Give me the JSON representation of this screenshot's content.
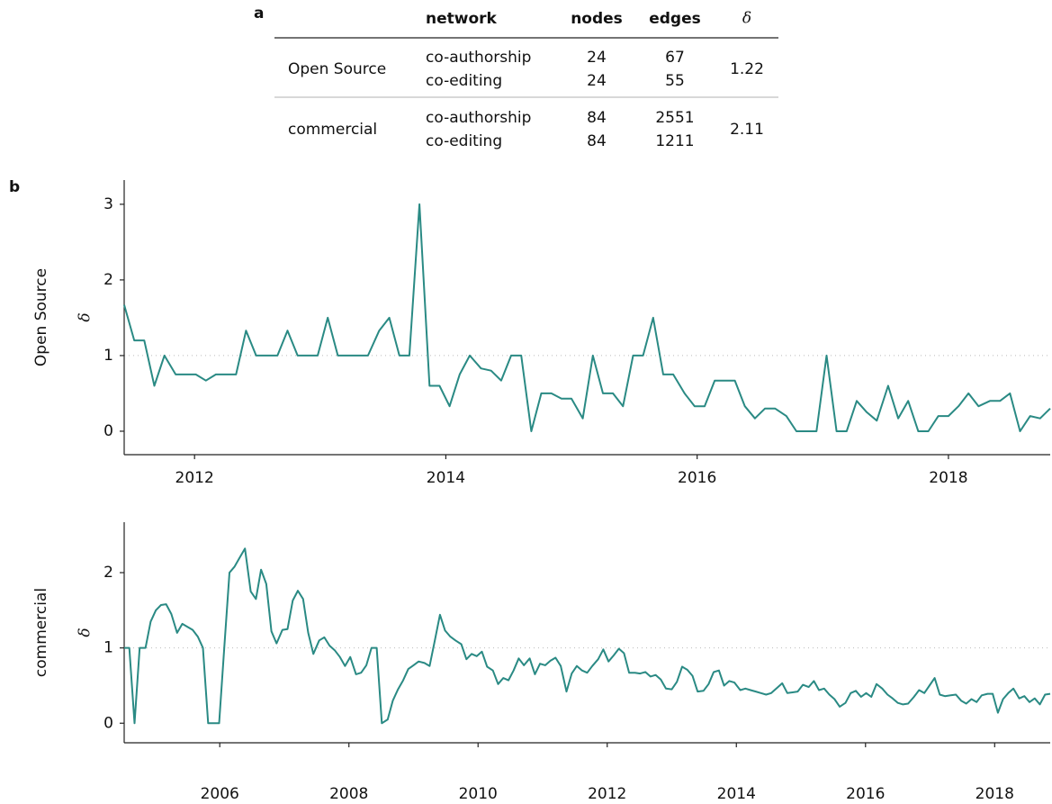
{
  "panel_labels": [
    "a",
    "b"
  ],
  "table": {
    "header": [
      "network",
      "nodes",
      "edges",
      "δ"
    ],
    "groups": [
      {
        "name": "Open Source",
        "rows": [
          [
            "co-authorship",
            24,
            67
          ],
          [
            "co-editing",
            24,
            55
          ]
        ],
        "delta": 1.22
      },
      {
        "name": "commercial",
        "rows": [
          [
            "co-authorship",
            84,
            2551
          ],
          [
            "co-editing",
            84,
            1211
          ]
        ],
        "delta": 2.11
      }
    ]
  },
  "chart_data": [
    {
      "type": "line",
      "label": "Open Source",
      "ylabel": "δ",
      "color": "#2a8a84",
      "reference_line": 1,
      "xlim": [
        2011.44,
        2018.81
      ],
      "xticks": [
        2012,
        2014,
        2016,
        2018
      ],
      "ylim": [
        -0.31,
        3.32
      ],
      "yticks": [
        0,
        1,
        2,
        3
      ],
      "x": [
        2011.44,
        2011.52,
        2011.6,
        2011.68,
        2011.76,
        2011.85,
        2011.93,
        2012.01,
        2012.09,
        2012.17,
        2012.25,
        2012.33,
        2012.41,
        2012.49,
        2012.57,
        2012.66,
        2012.74,
        2012.82,
        2012.9,
        2012.98,
        2013.06,
        2013.14,
        2013.22,
        2013.3,
        2013.38,
        2013.47,
        2013.55,
        2013.63,
        2013.71,
        2013.79,
        2013.87,
        2013.95,
        2014.03,
        2014.11,
        2014.19,
        2014.28,
        2014.36,
        2014.44,
        2014.52,
        2014.6,
        2014.68,
        2014.76,
        2014.84,
        2014.92,
        2015.0,
        2015.09,
        2015.17,
        2015.25,
        2015.33,
        2015.41,
        2015.49,
        2015.57,
        2015.65,
        2015.73,
        2015.81,
        2015.9,
        2015.98,
        2016.06,
        2016.14,
        2016.22,
        2016.3,
        2016.38,
        2016.46,
        2016.54,
        2016.62,
        2016.71,
        2016.79,
        2016.87,
        2016.95,
        2017.03,
        2017.11,
        2017.19,
        2017.27,
        2017.35,
        2017.43,
        2017.52,
        2017.6,
        2017.68,
        2017.76,
        2017.84,
        2017.92,
        2018.0,
        2018.08,
        2018.16,
        2018.24,
        2018.33,
        2018.41,
        2018.49,
        2018.57,
        2018.65,
        2018.73,
        2018.81
      ],
      "values": [
        1.67,
        1.2,
        1.2,
        0.6,
        1.0,
        0.75,
        0.75,
        0.75,
        0.67,
        0.75,
        0.75,
        0.75,
        1.33,
        1.0,
        1.0,
        1.0,
        1.33,
        1.0,
        1.0,
        1.0,
        1.5,
        1.0,
        1.0,
        1.0,
        1.0,
        1.33,
        1.5,
        1.0,
        1.0,
        3.0,
        0.6,
        0.6,
        0.33,
        0.75,
        1.0,
        0.83,
        0.8,
        0.67,
        1.0,
        1.0,
        0.0,
        0.5,
        0.5,
        0.43,
        0.43,
        0.17,
        1.0,
        0.5,
        0.5,
        0.33,
        1.0,
        1.0,
        1.5,
        0.75,
        0.75,
        0.5,
        0.33,
        0.33,
        0.67,
        0.67,
        0.67,
        0.33,
        0.17,
        0.3,
        0.3,
        0.2,
        0.0,
        0.0,
        0.0,
        1.0,
        0.0,
        0.0,
        0.4,
        0.25,
        0.14,
        0.6,
        0.17,
        0.4,
        0.0,
        0.0,
        0.2,
        0.2,
        0.33,
        0.5,
        0.33,
        0.4,
        0.4,
        0.5,
        0.0,
        0.2,
        0.17,
        0.3
      ]
    },
    {
      "type": "line",
      "label": "commercial",
      "ylabel": "δ",
      "color": "#2a8a84",
      "reference_line": 1,
      "xlim": [
        2004.52,
        2018.86
      ],
      "xticks": [
        2006,
        2008,
        2010,
        2012,
        2014,
        2016,
        2018
      ],
      "ylim": [
        -0.26,
        2.67
      ],
      "yticks": [
        0,
        1,
        2
      ],
      "x": [
        2004.52,
        2004.6,
        2004.68,
        2004.76,
        2004.85,
        2004.93,
        2005.01,
        2005.09,
        2005.17,
        2005.25,
        2005.34,
        2005.42,
        2005.5,
        2005.58,
        2005.66,
        2005.74,
        2005.82,
        2005.91,
        2005.99,
        2006.07,
        2006.15,
        2006.23,
        2006.31,
        2006.39,
        2006.48,
        2006.56,
        2006.64,
        2006.72,
        2006.8,
        2006.88,
        2006.97,
        2007.05,
        2007.13,
        2007.21,
        2007.29,
        2007.37,
        2007.45,
        2007.54,
        2007.62,
        2007.7,
        2007.78,
        2007.86,
        2007.94,
        2008.02,
        2008.11,
        2008.19,
        2008.27,
        2008.35,
        2008.43,
        2008.51,
        2008.6,
        2008.68,
        2008.76,
        2008.84,
        2008.92,
        2009.0,
        2009.08,
        2009.17,
        2009.25,
        2009.33,
        2009.41,
        2009.49,
        2009.57,
        2009.65,
        2009.74,
        2009.82,
        2009.9,
        2009.98,
        2010.06,
        2010.14,
        2010.23,
        2010.31,
        2010.39,
        2010.47,
        2010.55,
        2010.63,
        2010.71,
        2010.8,
        2010.88,
        2010.96,
        2011.04,
        2011.12,
        2011.2,
        2011.28,
        2011.37,
        2011.45,
        2011.53,
        2011.61,
        2011.69,
        2011.77,
        2011.86,
        2011.94,
        2012.02,
        2012.1,
        2012.18,
        2012.26,
        2012.34,
        2012.43,
        2012.51,
        2012.59,
        2012.67,
        2012.75,
        2012.83,
        2012.91,
        2013.0,
        2013.08,
        2013.16,
        2013.24,
        2013.32,
        2013.4,
        2013.49,
        2013.57,
        2013.65,
        2013.73,
        2013.81,
        2013.89,
        2013.97,
        2014.06,
        2014.14,
        2014.22,
        2014.3,
        2014.38,
        2014.46,
        2014.54,
        2014.63,
        2014.71,
        2014.79,
        2014.87,
        2014.95,
        2015.03,
        2015.12,
        2015.2,
        2015.28,
        2015.36,
        2015.44,
        2015.52,
        2015.6,
        2015.69,
        2015.77,
        2015.85,
        2015.93,
        2016.01,
        2016.09,
        2016.17,
        2016.26,
        2016.34,
        2016.42,
        2016.5,
        2016.58,
        2016.66,
        2016.75,
        2016.83,
        2016.91,
        2016.99,
        2017.07,
        2017.15,
        2017.23,
        2017.32,
        2017.4,
        2017.48,
        2017.56,
        2017.64,
        2017.72,
        2017.8,
        2017.89,
        2017.97,
        2018.05,
        2018.13,
        2018.21,
        2018.29,
        2018.38,
        2018.46,
        2018.54,
        2018.62,
        2018.7,
        2018.78,
        2018.86
      ],
      "values": [
        1.0,
        1.0,
        0.0,
        1.0,
        1.0,
        1.35,
        1.5,
        1.57,
        1.58,
        1.45,
        1.2,
        1.32,
        1.28,
        1.24,
        1.15,
        1.0,
        0.0,
        0.0,
        0.0,
        1.0,
        2.0,
        2.08,
        2.2,
        2.32,
        1.75,
        1.65,
        2.04,
        1.85,
        1.22,
        1.06,
        1.24,
        1.25,
        1.63,
        1.76,
        1.65,
        1.2,
        0.92,
        1.1,
        1.14,
        1.03,
        0.97,
        0.88,
        0.76,
        0.88,
        0.65,
        0.67,
        0.77,
        1.0,
        1.0,
        0.0,
        0.05,
        0.3,
        0.45,
        0.57,
        0.72,
        0.77,
        0.82,
        0.8,
        0.76,
        1.1,
        1.44,
        1.23,
        1.15,
        1.1,
        1.05,
        0.85,
        0.92,
        0.89,
        0.95,
        0.75,
        0.7,
        0.52,
        0.6,
        0.57,
        0.7,
        0.86,
        0.77,
        0.86,
        0.65,
        0.79,
        0.77,
        0.83,
        0.87,
        0.76,
        0.42,
        0.66,
        0.76,
        0.7,
        0.67,
        0.76,
        0.85,
        0.98,
        0.82,
        0.9,
        0.99,
        0.93,
        0.67,
        0.67,
        0.66,
        0.68,
        0.62,
        0.64,
        0.58,
        0.46,
        0.45,
        0.55,
        0.75,
        0.71,
        0.63,
        0.42,
        0.43,
        0.52,
        0.68,
        0.7,
        0.5,
        0.56,
        0.54,
        0.44,
        0.46,
        0.44,
        0.42,
        0.4,
        0.38,
        0.4,
        0.47,
        0.53,
        0.4,
        0.41,
        0.42,
        0.51,
        0.48,
        0.56,
        0.44,
        0.46,
        0.38,
        0.32,
        0.22,
        0.27,
        0.4,
        0.43,
        0.35,
        0.4,
        0.35,
        0.52,
        0.46,
        0.38,
        0.33,
        0.27,
        0.25,
        0.26,
        0.35,
        0.44,
        0.4,
        0.5,
        0.6,
        0.38,
        0.36,
        0.37,
        0.38,
        0.3,
        0.26,
        0.32,
        0.28,
        0.37,
        0.39,
        0.39,
        0.14,
        0.32,
        0.4,
        0.46,
        0.33,
        0.36,
        0.28,
        0.33,
        0.25,
        0.38,
        0.39
      ]
    }
  ]
}
